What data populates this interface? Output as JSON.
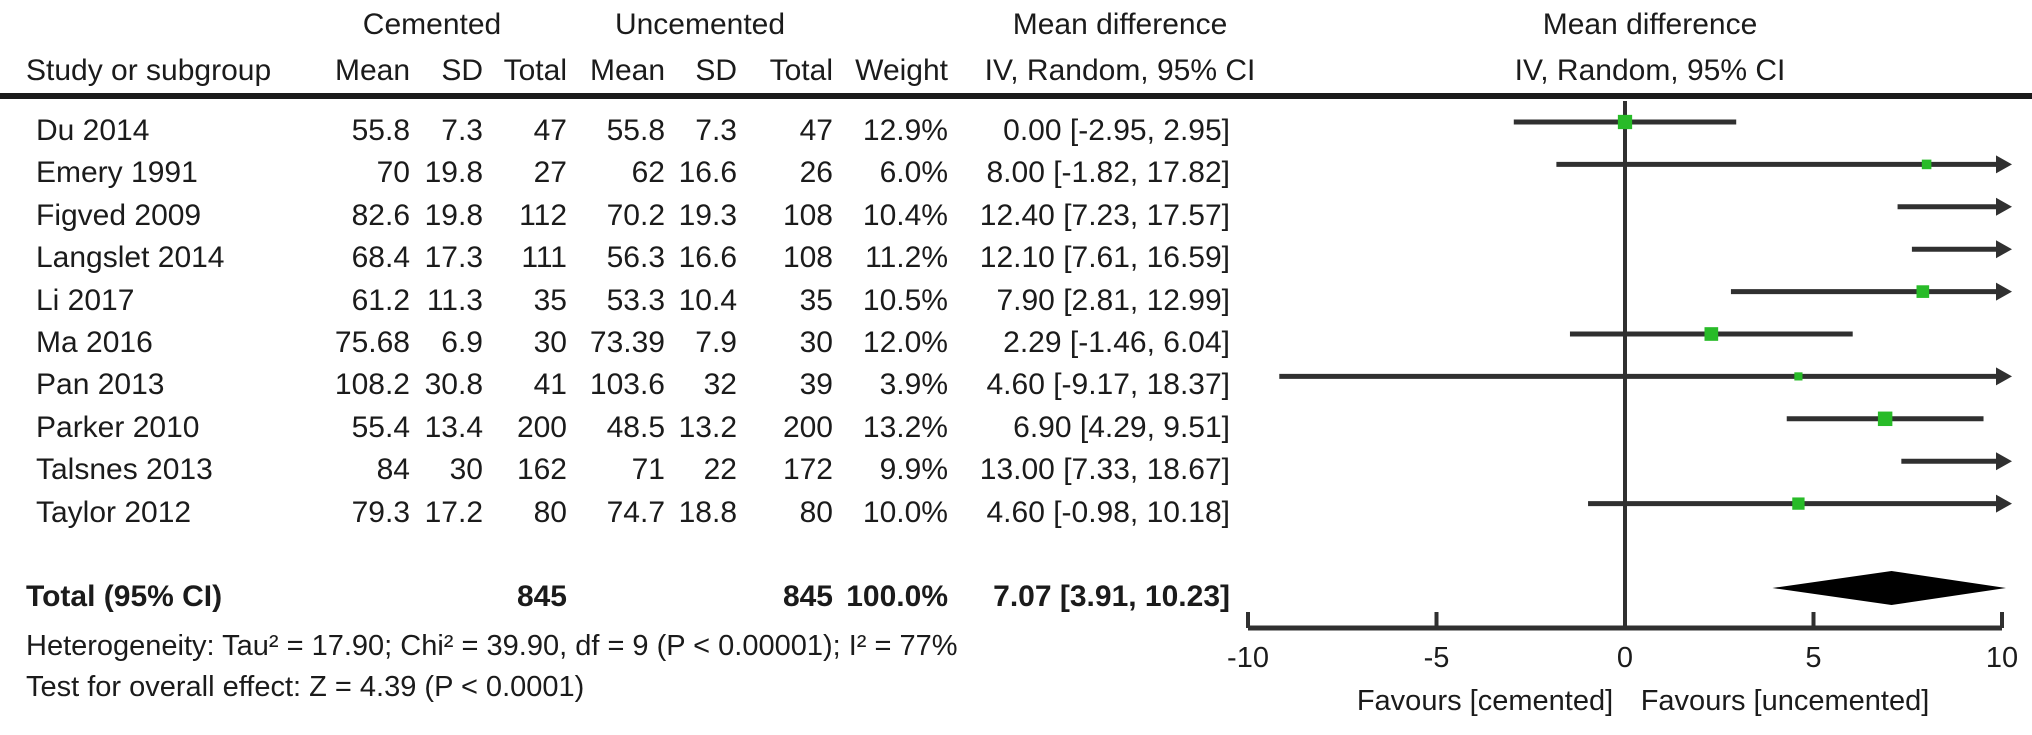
{
  "header": {
    "group1": "Cemented",
    "group2": "Uncemented",
    "md_left": "Mean difference",
    "md_right": "Mean difference",
    "study_col": "Study or subgroup",
    "mean_col": "Mean",
    "sd_col": "SD",
    "total_col": "Total",
    "weight_col": "Weight",
    "ci_col_left": "IV, Random, 95% CI",
    "ci_col_right": "IV, Random, 95% CI"
  },
  "studies": [
    {
      "name": "Du 2014",
      "m1": "55.8",
      "sd1": "7.3",
      "t1": "47",
      "m2": "55.8",
      "sd2": "7.3",
      "t2": "47",
      "w": "12.9%",
      "ci": "0.00 [-2.95, 2.95]",
      "est": 0.0,
      "lo": -2.95,
      "hi": 2.95,
      "wt": 12.9
    },
    {
      "name": "Emery 1991",
      "m1": "70",
      "sd1": "19.8",
      "t1": "27",
      "m2": "62",
      "sd2": "16.6",
      "t2": "26",
      "w": "6.0%",
      "ci": "8.00 [-1.82, 17.82]",
      "est": 8.0,
      "lo": -1.82,
      "hi": 17.82,
      "wt": 6.0
    },
    {
      "name": "Figved 2009",
      "m1": "82.6",
      "sd1": "19.8",
      "t1": "112",
      "m2": "70.2",
      "sd2": "19.3",
      "t2": "108",
      "w": "10.4%",
      "ci": "12.40 [7.23, 17.57]",
      "est": 12.4,
      "lo": 7.23,
      "hi": 17.57,
      "wt": 10.4
    },
    {
      "name": "Langslet 2014",
      "m1": "68.4",
      "sd1": "17.3",
      "t1": "111",
      "m2": "56.3",
      "sd2": "16.6",
      "t2": "108",
      "w": "11.2%",
      "ci": "12.10 [7.61, 16.59]",
      "est": 12.1,
      "lo": 7.61,
      "hi": 16.59,
      "wt": 11.2
    },
    {
      "name": "Li 2017",
      "m1": "61.2",
      "sd1": "11.3",
      "t1": "35",
      "m2": "53.3",
      "sd2": "10.4",
      "t2": "35",
      "w": "10.5%",
      "ci": "7.90 [2.81, 12.99]",
      "est": 7.9,
      "lo": 2.81,
      "hi": 12.99,
      "wt": 10.5
    },
    {
      "name": "Ma 2016",
      "m1": "75.68",
      "sd1": "6.9",
      "t1": "30",
      "m2": "73.39",
      "sd2": "7.9",
      "t2": "30",
      "w": "12.0%",
      "ci": "2.29 [-1.46, 6.04]",
      "est": 2.29,
      "lo": -1.46,
      "hi": 6.04,
      "wt": 12.0
    },
    {
      "name": "Pan 2013",
      "m1": "108.2",
      "sd1": "30.8",
      "t1": "41",
      "m2": "103.6",
      "sd2": "32",
      "t2": "39",
      "w": "3.9%",
      "ci": "4.60 [-9.17, 18.37]",
      "est": 4.6,
      "lo": -9.17,
      "hi": 18.37,
      "wt": 3.9
    },
    {
      "name": "Parker 2010",
      "m1": "55.4",
      "sd1": "13.4",
      "t1": "200",
      "m2": "48.5",
      "sd2": "13.2",
      "t2": "200",
      "w": "13.2%",
      "ci": "6.90 [4.29, 9.51]",
      "est": 6.9,
      "lo": 4.29,
      "hi": 9.51,
      "wt": 13.2
    },
    {
      "name": "Talsnes 2013",
      "m1": "84",
      "sd1": "30",
      "t1": "162",
      "m2": "71",
      "sd2": "22",
      "t2": "172",
      "w": "9.9%",
      "ci": "13.00 [7.33, 18.67]",
      "est": 13.0,
      "lo": 7.33,
      "hi": 18.67,
      "wt": 9.9
    },
    {
      "name": "Taylor 2012",
      "m1": "79.3",
      "sd1": "17.2",
      "t1": "80",
      "m2": "74.7",
      "sd2": "18.8",
      "t2": "80",
      "w": "10.0%",
      "ci": "4.60 [-0.98, 10.18]",
      "est": 4.6,
      "lo": -0.98,
      "hi": 10.18,
      "wt": 10.0
    }
  ],
  "total": {
    "label": "Total (95% CI)",
    "t1": "845",
    "t2": "845",
    "w": "100.0%",
    "ci": "7.07 [3.91, 10.23]",
    "est": 7.07,
    "lo": 3.91,
    "hi": 10.23
  },
  "footer": {
    "heterogeneity": "Heterogeneity: Tau² = 17.90; Chi² = 39.90, df = 9 (P < 0.00001); I² = 77%",
    "overall_effect": "Test for overall effect: Z = 4.39 (P < 0.0001)"
  },
  "axis": {
    "min": -10,
    "max": 10,
    "ticks": [
      "-10",
      "-5",
      "0",
      "5",
      "10"
    ],
    "tick_values": [
      -10,
      -5,
      0,
      5,
      10
    ],
    "favours_left": "Favours [cemented]",
    "favours_right": "Favours [uncemented]"
  },
  "colors": {
    "marker_green": "#28bb28",
    "line_dark": "#303030",
    "text": "#1b1b1b",
    "diamond": "#000000"
  },
  "chart_data": {
    "type": "scatter",
    "subtype": "forest-plot-mean-difference",
    "title": "Mean difference, IV, Random, 95% CI",
    "xlabel_left": "Favours [cemented]",
    "xlabel_right": "Favours [uncemented]",
    "xlim": [
      -10,
      10
    ],
    "x_ticks": [
      -10,
      -5,
      0,
      5,
      10
    ],
    "series": [
      {
        "name": "Du 2014",
        "est": 0.0,
        "ci_low": -2.95,
        "ci_high": 2.95,
        "weight_pct": 12.9
      },
      {
        "name": "Emery 1991",
        "est": 8.0,
        "ci_low": -1.82,
        "ci_high": 17.82,
        "weight_pct": 6.0
      },
      {
        "name": "Figved 2009",
        "est": 12.4,
        "ci_low": 7.23,
        "ci_high": 17.57,
        "weight_pct": 10.4
      },
      {
        "name": "Langslet 2014",
        "est": 12.1,
        "ci_low": 7.61,
        "ci_high": 16.59,
        "weight_pct": 11.2
      },
      {
        "name": "Li 2017",
        "est": 7.9,
        "ci_low": 2.81,
        "ci_high": 12.99,
        "weight_pct": 10.5
      },
      {
        "name": "Ma 2016",
        "est": 2.29,
        "ci_low": -1.46,
        "ci_high": 6.04,
        "weight_pct": 12.0
      },
      {
        "name": "Pan 2013",
        "est": 4.6,
        "ci_low": -9.17,
        "ci_high": 18.37,
        "weight_pct": 3.9
      },
      {
        "name": "Parker 2010",
        "est": 6.9,
        "ci_low": 4.29,
        "ci_high": 9.51,
        "weight_pct": 13.2
      },
      {
        "name": "Talsnes 2013",
        "est": 13.0,
        "ci_low": 7.33,
        "ci_high": 18.67,
        "weight_pct": 9.9
      },
      {
        "name": "Taylor 2012",
        "est": 4.6,
        "ci_low": -0.98,
        "ci_high": 10.18,
        "weight_pct": 10.0
      }
    ],
    "overall": {
      "name": "Total (95% CI)",
      "est": 7.07,
      "ci_low": 3.91,
      "ci_high": 10.23,
      "weight_pct": 100.0,
      "heterogeneity": "Tau² = 17.90; Chi² = 39.90, df = 9 (P < 0.00001); I² = 77%",
      "overall_effect": "Z = 4.39 (P < 0.0001)"
    }
  }
}
